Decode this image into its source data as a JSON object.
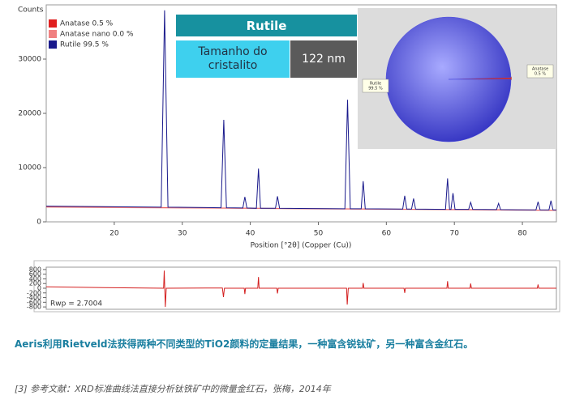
{
  "chart_data": [
    {
      "type": "line",
      "y_label": "Counts",
      "x_label": "Position [°2θ] (Copper (Cu))",
      "xlim": [
        10,
        85
      ],
      "ylim": [
        0,
        40000
      ],
      "xticks": [
        20,
        30,
        40,
        50,
        60,
        70,
        80
      ],
      "yticks": [
        0,
        10000,
        20000,
        30000
      ],
      "series": [
        {
          "name": "Anatase 0.5 %",
          "color": "#e02020",
          "x": [
            10,
            40,
            85
          ],
          "values": [
            2800,
            2500,
            2150
          ]
        },
        {
          "name": "Anatase nano 0.0 %",
          "color": "#f08080",
          "x": [
            10,
            85
          ],
          "values": [
            2700,
            2100
          ]
        },
        {
          "name": "Rutile 99.5 %",
          "color": "#1a1a8c",
          "x": [
            10,
            26.9,
            27.4,
            27.9,
            35.7,
            36.1,
            36.5,
            38.9,
            39.2,
            39.5,
            40.9,
            41.2,
            41.5,
            43.7,
            44.0,
            44.3,
            53.9,
            54.3,
            54.7,
            56.3,
            56.6,
            56.9,
            62.4,
            62.7,
            63.0,
            63.7,
            64.0,
            64.3,
            68.7,
            69.0,
            69.3,
            69.5,
            69.8,
            70.1,
            72.1,
            72.4,
            72.7,
            76.2,
            76.5,
            76.8,
            82.0,
            82.3,
            82.6,
            83.9,
            84.2,
            84.5,
            85
          ],
          "values": [
            2900,
            2700,
            39000,
            2700,
            2600,
            18800,
            2600,
            2550,
            4600,
            2550,
            2500,
            9800,
            2500,
            2500,
            4700,
            2500,
            2400,
            22500,
            2400,
            2400,
            7500,
            2400,
            2350,
            4800,
            2350,
            2350,
            4300,
            2350,
            2300,
            8000,
            2300,
            2300,
            5300,
            2300,
            2300,
            3600,
            2300,
            2250,
            3400,
            2250,
            2200,
            3700,
            2200,
            2200,
            3900,
            2200,
            2200
          ]
        }
      ]
    },
    {
      "type": "line",
      "annotation": "Rwp = 2.7004",
      "xlim": [
        10,
        85
      ],
      "ylim": [
        -900,
        900
      ],
      "yticks": [
        -800,
        -600,
        -400,
        -200,
        0,
        200,
        400,
        600,
        800
      ],
      "series": [
        {
          "name": null,
          "color": "#d42020",
          "x": [
            10,
            20,
            27.25,
            27.35,
            27.5,
            27.65,
            35.9,
            36.05,
            36.2,
            39.1,
            39.2,
            39.3,
            41.1,
            41.2,
            41.3,
            43.9,
            44.0,
            44.1,
            54.15,
            54.25,
            54.4,
            56.5,
            56.6,
            56.7,
            62.6,
            62.7,
            62.8,
            68.9,
            69.0,
            69.1,
            72.3,
            72.4,
            72.5,
            82.2,
            82.3,
            82.4,
            85
          ],
          "values": [
            60,
            20,
            0,
            750,
            -800,
            0,
            10,
            -380,
            0,
            0,
            -250,
            0,
            0,
            480,
            0,
            0,
            -220,
            0,
            0,
            -700,
            0,
            0,
            220,
            0,
            0,
            -200,
            0,
            0,
            300,
            0,
            0,
            200,
            0,
            0,
            160,
            0,
            0
          ]
        }
      ]
    },
    {
      "type": "pie",
      "categories": [
        "Anatase",
        "Rutile"
      ],
      "values": [
        0.5,
        99.5
      ],
      "value_labels": [
        "0.5 %",
        "99.5 %"
      ],
      "colors": [
        "#c83030",
        "#4a4ae0"
      ]
    }
  ],
  "table": {
    "header": "Rutile",
    "rows": [
      [
        "Tamanho do cristalito",
        "122 nm"
      ]
    ]
  },
  "caption": "Aeris利用Rietveld法获得两种不同类型的TiO2颜料的定量结果，一种富含锐钛矿，另一种富含金红石。",
  "reference": "[3] 参考文献：XRD标准曲线法直接分析钛铁矿中的微量金红石，张梅，2014年"
}
